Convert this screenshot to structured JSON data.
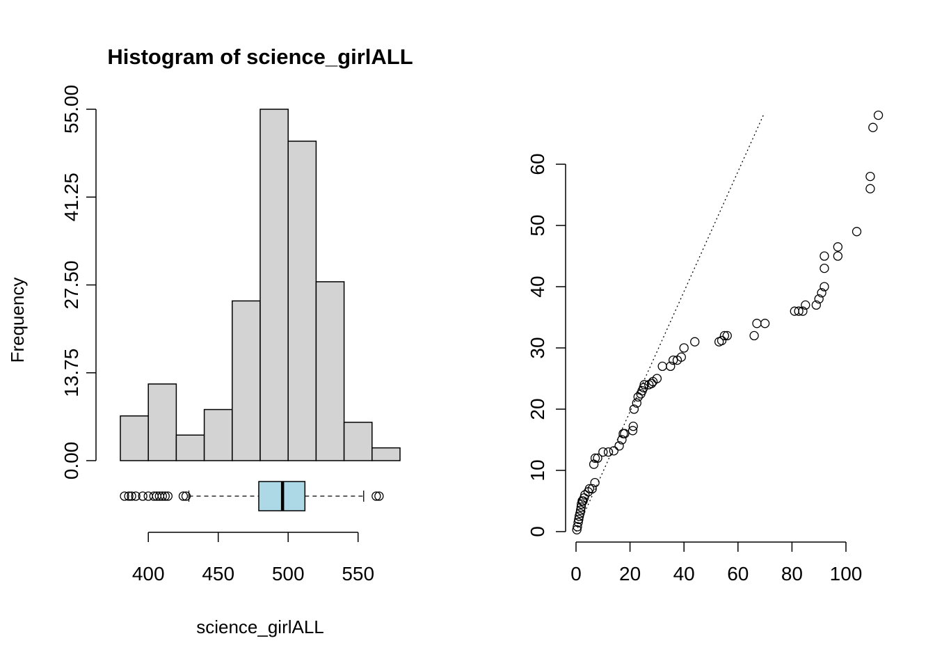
{
  "chart_data": [
    {
      "type": "histogram",
      "title": "Histogram of science_girlALL",
      "xlabel": "science_girlALL",
      "ylabel": "Frequency",
      "bins": [
        {
          "from": 380,
          "to": 400,
          "count": 7
        },
        {
          "from": 400,
          "to": 420,
          "count": 12
        },
        {
          "from": 420,
          "to": 440,
          "count": 4
        },
        {
          "from": 440,
          "to": 460,
          "count": 8
        },
        {
          "from": 460,
          "to": 480,
          "count": 25
        },
        {
          "from": 480,
          "to": 500,
          "count": 55
        },
        {
          "from": 500,
          "to": 520,
          "count": 50
        },
        {
          "from": 520,
          "to": 540,
          "count": 28
        },
        {
          "from": 540,
          "to": 560,
          "count": 6
        },
        {
          "from": 560,
          "to": 580,
          "count": 2
        }
      ],
      "ylim": [
        0,
        55
      ],
      "yticks": [
        "0.00",
        "13.75",
        "27.50",
        "41.25",
        "55.00"
      ],
      "xticks": [
        "400",
        "450",
        "500",
        "550"
      ],
      "bar_color": "#d3d3d3",
      "boxplot": {
        "q1": 479,
        "median": 496,
        "q3": 512,
        "whisker_low": 429,
        "whisker_high": 554,
        "outliers": [
          383,
          386,
          388,
          391,
          396,
          400,
          404,
          406,
          408,
          410,
          412,
          414,
          425,
          427,
          563,
          565
        ],
        "fill_color": "#add8e6"
      }
    },
    {
      "type": "scatter",
      "subtype": "qq-plot",
      "title": "",
      "xlabel": "",
      "ylabel": "",
      "xlim": [
        0,
        112
      ],
      "ylim": [
        0,
        68
      ],
      "xticks": [
        "0",
        "20",
        "40",
        "60",
        "80",
        "100"
      ],
      "yticks": [
        "0",
        "10",
        "20",
        "30",
        "40",
        "50",
        "60"
      ],
      "reference_line": {
        "slope": 0.98,
        "intercept": 0,
        "style": "dotted"
      },
      "points": [
        [
          0.3,
          0.3
        ],
        [
          0.5,
          0.8
        ],
        [
          0.8,
          1.5
        ],
        [
          1.0,
          2.0
        ],
        [
          1.2,
          2.5
        ],
        [
          1.5,
          3.0
        ],
        [
          1.7,
          3.5
        ],
        [
          1.9,
          4.0
        ],
        [
          2.0,
          4.5
        ],
        [
          2.3,
          5.0
        ],
        [
          2.6,
          5.0
        ],
        [
          3.0,
          5.5
        ],
        [
          3.3,
          6.0
        ],
        [
          4.5,
          6.5
        ],
        [
          5.0,
          7.0
        ],
        [
          6.0,
          7.0
        ],
        [
          7.0,
          8.0
        ],
        [
          6.6,
          11.0
        ],
        [
          7.1,
          12.0
        ],
        [
          8.0,
          12.0
        ],
        [
          10.0,
          13.0
        ],
        [
          12.0,
          13.0
        ],
        [
          14.0,
          13.2
        ],
        [
          16.0,
          14.0
        ],
        [
          17.0,
          15.0
        ],
        [
          17.5,
          16.0
        ],
        [
          18.0,
          16.0
        ],
        [
          21.0,
          16.5
        ],
        [
          21.2,
          17.2
        ],
        [
          21.5,
          20.0
        ],
        [
          22.5,
          21.0
        ],
        [
          23.0,
          22.0
        ],
        [
          24.0,
          22.5
        ],
        [
          24.5,
          23.0
        ],
        [
          25.0,
          23.5
        ],
        [
          25.3,
          24.0
        ],
        [
          27.0,
          24.0
        ],
        [
          28.0,
          24.2
        ],
        [
          28.5,
          24.5
        ],
        [
          30.0,
          25.0
        ],
        [
          32.0,
          27.0
        ],
        [
          35.0,
          27.0
        ],
        [
          36.0,
          28.0
        ],
        [
          37.5,
          28.0
        ],
        [
          39.0,
          28.5
        ],
        [
          40.0,
          30.0
        ],
        [
          44.0,
          31.0
        ],
        [
          53.0,
          31.0
        ],
        [
          54.0,
          31.2
        ],
        [
          55.0,
          32.0
        ],
        [
          56.0,
          32.0
        ],
        [
          66.0,
          32.0
        ],
        [
          67.0,
          34.0
        ],
        [
          70.0,
          34.0
        ],
        [
          81.0,
          36.0
        ],
        [
          82.5,
          36.0
        ],
        [
          84.0,
          36.0
        ],
        [
          85.0,
          37.0
        ],
        [
          89.0,
          37.0
        ],
        [
          90.0,
          38.0
        ],
        [
          91.0,
          39.0
        ],
        [
          92.0,
          40.0
        ],
        [
          92.0,
          43.0
        ],
        [
          92.0,
          45.0
        ],
        [
          97.0,
          45.0
        ],
        [
          97.0,
          46.5
        ],
        [
          104.0,
          49.0
        ],
        [
          109.0,
          56.0
        ],
        [
          109.0,
          58.0
        ],
        [
          110.0,
          66.0
        ],
        [
          112.0,
          68.0
        ]
      ]
    }
  ]
}
